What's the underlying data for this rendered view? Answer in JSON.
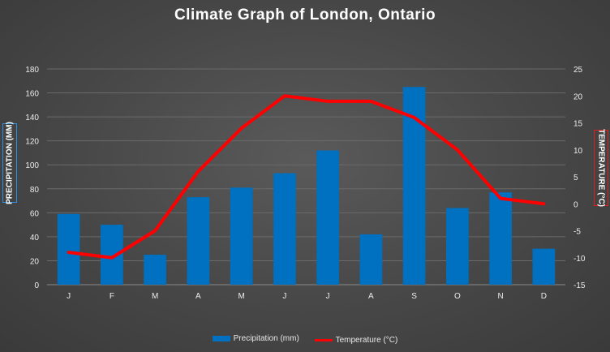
{
  "chart_data": {
    "type": "bar+line",
    "title": "Climate Graph of London, Ontario",
    "categories": [
      "J",
      "F",
      "M",
      "A",
      "M",
      "J",
      "J",
      "A",
      "S",
      "O",
      "N",
      "D"
    ],
    "series": [
      {
        "name": "Precipitation (mm)",
        "type": "bar",
        "axis": "left",
        "color": "#0070c0",
        "values": [
          59,
          50,
          25,
          73,
          81,
          93,
          112,
          42,
          165,
          64,
          77,
          30
        ]
      },
      {
        "name": "Temperature (°C)",
        "type": "line",
        "axis": "right",
        "color": "#ff0000",
        "values": [
          -9,
          -10,
          -5,
          6,
          14,
          20,
          19,
          19,
          16,
          10,
          1,
          0
        ]
      }
    ],
    "ylabel_left": "PRECIPITATION (MM)",
    "ylabel_right": "TEMPERATURE (°C)",
    "ylim_left": [
      0,
      180
    ],
    "ylim_right": [
      -15,
      25
    ],
    "yticks_left": [
      0,
      20,
      40,
      60,
      80,
      100,
      120,
      140,
      160,
      180
    ],
    "yticks_right": [
      -15,
      -10,
      -5,
      0,
      5,
      10,
      15,
      20,
      25
    ],
    "grid": true,
    "legend_position": "bottom"
  },
  "legend": {
    "precip_label": "Precipitation (mm)",
    "temp_label": "Temperature (°C)"
  }
}
